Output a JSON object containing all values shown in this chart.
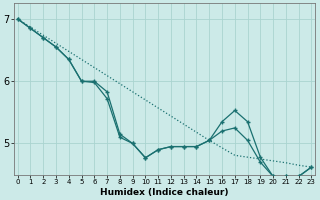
{
  "xlabel": "Humidex (Indice chaleur)",
  "bg_color": "#cceae8",
  "line_color": "#1a7070",
  "grid_color": "#aad4d0",
  "xmin": 0,
  "xmax": 23,
  "ymin": 4.5,
  "ymax": 7.25,
  "yticks": [
    5,
    6,
    7
  ],
  "line1_x": [
    0,
    1,
    2,
    3,
    4,
    5,
    6,
    7,
    8,
    9,
    10,
    11,
    12,
    13,
    14,
    15,
    16,
    17,
    18,
    19,
    20,
    21,
    22,
    23
  ],
  "line1_y": [
    7.0,
    6.87,
    6.74,
    6.61,
    6.48,
    6.35,
    6.22,
    6.09,
    5.96,
    5.83,
    5.7,
    5.57,
    5.44,
    5.31,
    5.18,
    5.05,
    4.93,
    4.81,
    4.78,
    4.75,
    4.72,
    4.69,
    4.65,
    4.62
  ],
  "line2_x": [
    0,
    1,
    2,
    3,
    4,
    5,
    6,
    7,
    8,
    9,
    10,
    11,
    12,
    13,
    14,
    15,
    16,
    17,
    18,
    19,
    20,
    21,
    22,
    23
  ],
  "line2_y": [
    7.0,
    6.85,
    6.7,
    6.55,
    6.35,
    6.0,
    5.98,
    5.72,
    5.1,
    5.0,
    4.77,
    4.9,
    4.95,
    4.95,
    4.95,
    5.05,
    5.2,
    5.25,
    5.05,
    4.7,
    4.47,
    4.47,
    4.47,
    4.62
  ],
  "line3_x": [
    0,
    1,
    2,
    3,
    4,
    5,
    6,
    7,
    8,
    9,
    10,
    11,
    12,
    13,
    14,
    15,
    16,
    17,
    18,
    19,
    20,
    21,
    22,
    23
  ],
  "line3_y": [
    7.0,
    6.85,
    6.7,
    6.55,
    6.35,
    6.0,
    6.0,
    5.83,
    5.15,
    5.0,
    4.77,
    4.9,
    4.95,
    4.95,
    4.95,
    5.05,
    5.35,
    5.53,
    5.35,
    4.78,
    4.47,
    4.47,
    4.47,
    4.62
  ]
}
